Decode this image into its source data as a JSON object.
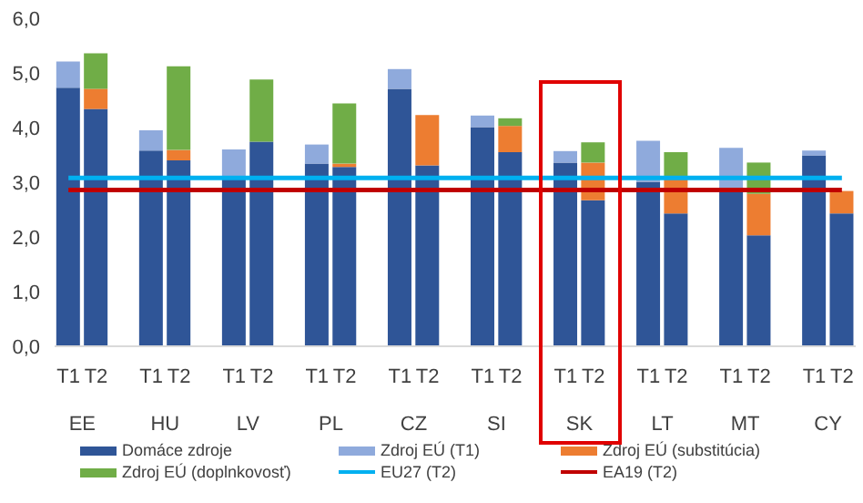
{
  "chart_data": {
    "type": "bar",
    "stacked": true,
    "categories": [
      "T1",
      "T2",
      null,
      "T1",
      "T2",
      null,
      "T1",
      "T2",
      null,
      "T1",
      "T2",
      null,
      "T1",
      "T2",
      null,
      "T1",
      "T2",
      null,
      "T1",
      "T2",
      null,
      "T1",
      "T2",
      null,
      "T1",
      "T2",
      null,
      "T1",
      "T2"
    ],
    "series": [
      {
        "name": "Domáce zdroje",
        "color": "#2f5597",
        "values": [
          4.73,
          4.34,
          null,
          3.58,
          3.4,
          null,
          3.05,
          3.74,
          null,
          3.34,
          3.28,
          null,
          4.71,
          3.31,
          null,
          4.01,
          3.55,
          null,
          3.36,
          2.67,
          null,
          3.01,
          2.43,
          null,
          2.91,
          2.03,
          null,
          3.49,
          2.43
        ]
      },
      {
        "name": "Zdroj EÚ (T1)",
        "color": "#8faadc",
        "values": [
          0.48,
          null,
          null,
          0.37,
          null,
          null,
          0.55,
          null,
          null,
          0.35,
          null,
          null,
          0.36,
          null,
          null,
          0.21,
          null,
          null,
          0.21,
          null,
          null,
          0.75,
          null,
          null,
          0.72,
          null,
          null,
          0.09,
          null
        ]
      },
      {
        "name": "Zdroj EÚ (substitúcia)",
        "color": "#ed7d31",
        "values": [
          null,
          0.37,
          null,
          null,
          0.19,
          null,
          null,
          null,
          null,
          null,
          0.06,
          null,
          null,
          0.92,
          null,
          null,
          0.48,
          null,
          null,
          0.69,
          null,
          null,
          0.65,
          null,
          null,
          0.76,
          null,
          null,
          0.41
        ]
      },
      {
        "name": "Zdroj EÚ (doplnkovosť)",
        "color": "#70ad47",
        "values": [
          null,
          0.65,
          null,
          null,
          1.53,
          null,
          null,
          1.14,
          null,
          null,
          1.1,
          null,
          null,
          null,
          null,
          null,
          0.14,
          null,
          null,
          0.37,
          null,
          null,
          0.47,
          null,
          null,
          0.57,
          null,
          null,
          null
        ]
      },
      {
        "name": "EU27 (T2)",
        "type": "line",
        "color": "#00b0f0",
        "values": [
          3.08,
          3.08,
          3.08,
          3.08,
          3.08,
          3.08,
          3.08,
          3.08,
          3.08,
          3.08,
          3.08,
          3.08,
          3.08,
          3.08,
          3.08,
          3.08,
          3.08,
          3.08,
          3.08,
          3.08,
          3.08,
          3.08,
          3.08,
          3.08,
          3.08,
          3.08,
          3.08,
          3.08,
          3.08
        ]
      },
      {
        "name": "EA19 (T2)",
        "type": "line",
        "color": "#c00000",
        "values": [
          2.86,
          2.86,
          2.86,
          2.86,
          2.86,
          2.86,
          2.86,
          2.86,
          2.86,
          2.86,
          2.86,
          2.86,
          2.86,
          2.86,
          2.86,
          2.86,
          2.86,
          2.86,
          2.86,
          2.86,
          2.86,
          2.86,
          2.86,
          2.86,
          2.86,
          2.86,
          2.86,
          2.86,
          2.86
        ]
      }
    ],
    "annotations": [
      "EE",
      "HU",
      "LV",
      "PL",
      "CZ",
      "SI",
      "SK",
      "LT",
      "MT",
      "CY"
    ],
    "ylim": [
      0,
      6
    ],
    "yticks": [
      {
        "value": 0,
        "label": "0,0"
      },
      {
        "value": 1,
        "label": "1,0"
      },
      {
        "value": 2,
        "label": "2,0"
      },
      {
        "value": 3,
        "label": "3,0"
      },
      {
        "value": 4,
        "label": "4,0"
      },
      {
        "value": 5,
        "label": "5,0"
      },
      {
        "value": 6,
        "label": "6,0"
      }
    ],
    "grid": false,
    "legend": "bottom",
    "marker": "none"
  }
}
